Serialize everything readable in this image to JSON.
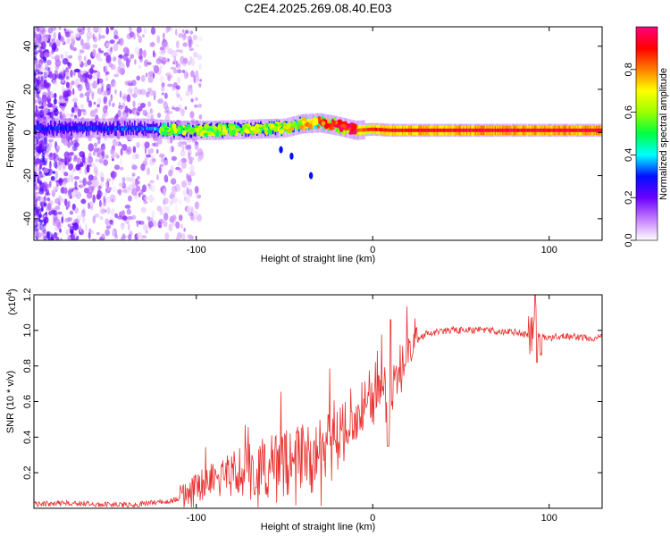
{
  "page": {
    "title": "C2E4.2025.269.08.40.E03"
  },
  "chart_data": [
    {
      "type": "heatmap",
      "title": "C2E4.2025.269.08.40.E03",
      "xlabel": "Height of straight line (km)",
      "ylabel": "Frequency (Hz)",
      "xlim": [
        -192,
        130
      ],
      "ylim": [
        -50,
        49
      ],
      "xticks": [
        -100,
        0,
        100
      ],
      "yticks": [
        -40,
        -20,
        0,
        20,
        40
      ],
      "colorbar": {
        "label": "Normalized spectral amplitude",
        "range": [
          0,
          1
        ],
        "ticks": [
          "0.0",
          "0.2",
          "0.4",
          "0.6",
          "0.8"
        ],
        "tick_values": [
          0.0,
          0.2,
          0.4,
          0.6,
          0.8
        ],
        "colors": [
          "#ffffff",
          "#c47cff",
          "#6a00ff",
          "#0010ff",
          "#00ffff",
          "#00ff40",
          "#9cff00",
          "#ffff00",
          "#ff7f00",
          "#ff0000",
          "#ff007f"
        ]
      },
      "ridge": [
        {
          "x": -192,
          "freq": 2,
          "amp": 0.3
        },
        {
          "x": -150,
          "freq": 2,
          "amp": 0.3
        },
        {
          "x": -130,
          "freq": 2,
          "amp": 0.35
        },
        {
          "x": -110,
          "freq": 1,
          "amp": 0.45
        },
        {
          "x": -90,
          "freq": 1,
          "amp": 0.45
        },
        {
          "x": -70,
          "freq": 1.5,
          "amp": 0.48
        },
        {
          "x": -50,
          "freq": 2,
          "amp": 0.5
        },
        {
          "x": -40,
          "freq": 4,
          "amp": 0.55
        },
        {
          "x": -30,
          "freq": 4.5,
          "amp": 0.65
        },
        {
          "x": -20,
          "freq": 3,
          "amp": 0.75
        },
        {
          "x": -10,
          "freq": 1,
          "amp": 0.85
        },
        {
          "x": 0,
          "freq": 1.5,
          "amp": 0.88
        },
        {
          "x": 10,
          "freq": 1,
          "amp": 0.9
        },
        {
          "x": 20,
          "freq": 1,
          "amp": 0.92
        },
        {
          "x": 60,
          "freq": 1,
          "amp": 0.95
        },
        {
          "x": 100,
          "freq": 1,
          "amp": 0.95
        },
        {
          "x": 130,
          "freq": 1,
          "amp": 0.95
        }
      ]
    },
    {
      "type": "line",
      "xlabel": "Height of straight line (km)",
      "ylabel": "SNR (10 * v/v)",
      "yscale_label": "(x10",
      "yscale_exp": "4",
      "yscale_close": ")",
      "xlim": [
        -192,
        130
      ],
      "ylim": [
        0,
        1.2
      ],
      "xticks": [
        -100,
        0,
        100
      ],
      "yticks": [
        0.2,
        0.4,
        0.6,
        0.8,
        1.0,
        1.2
      ],
      "color": "#e8302e",
      "series": [
        {
          "name": "SNR",
          "x": [
            -192,
            -170,
            -150,
            -135,
            -125,
            -115,
            -105,
            -95,
            -85,
            -75,
            -65,
            -55,
            -45,
            -35,
            -25,
            -18,
            -10,
            -5,
            0,
            5,
            8,
            10,
            12,
            15,
            20,
            25,
            30,
            40,
            60,
            80,
            90,
            92,
            94,
            100,
            110,
            120,
            130
          ],
          "y": [
            0.025,
            0.03,
            0.02,
            0.02,
            0.03,
            0.04,
            0.07,
            0.11,
            0.14,
            0.16,
            0.17,
            0.18,
            0.2,
            0.22,
            0.27,
            0.36,
            0.45,
            0.55,
            0.62,
            0.72,
            0.55,
            0.5,
            0.72,
            0.8,
            0.88,
            0.94,
            0.98,
            1.0,
            1.0,
            0.99,
            0.97,
            1.05,
            0.97,
            0.96,
            0.97,
            0.96,
            0.96
          ]
        }
      ]
    }
  ]
}
